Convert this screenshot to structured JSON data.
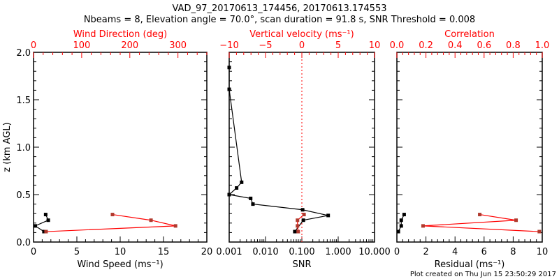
{
  "title_line1": "VAD_97_20170613_174456, 20170613.174553",
  "title_line2": "Nbeams = 8, Elevation angle = 70.0°, scan duration = 91.8 s, SNR Threshold = 0.008",
  "footer": "Plot created on Thu Jun 15 23:50:29 2017",
  "colors": {
    "axis": "#000000",
    "secondary": "#ff0000",
    "secondary_marker": "#b03a2e"
  },
  "chart_data": [
    {
      "type": "line",
      "ylabel": "z (km AGL)",
      "ylim": [
        0,
        2.0
      ],
      "yticks": [
        "0.0",
        "0.5",
        "1.0",
        "1.5",
        "2.0"
      ],
      "xlabel": "Wind Speed (ms⁻¹)",
      "xlim": [
        0,
        20
      ],
      "xticks": [
        "0",
        "5",
        "10",
        "15",
        "20"
      ],
      "top_xlabel": "Wind Direction (deg)",
      "top_xlim": [
        0,
        360
      ],
      "top_xticks": [
        "0",
        "100",
        "200",
        "300"
      ],
      "series": [
        {
          "name": "Wind Speed",
          "axis": "bottom",
          "x": [
            1.4,
            1.7,
            0.2,
            1.2
          ],
          "y": [
            0.29,
            0.23,
            0.17,
            0.11
          ]
        },
        {
          "name": "Wind Direction",
          "axis": "top",
          "x": [
            164,
            244,
            295,
            26
          ],
          "y": [
            0.29,
            0.23,
            0.17,
            0.11
          ]
        }
      ]
    },
    {
      "type": "line",
      "ylim": [
        0,
        2.0
      ],
      "xlabel": "SNR",
      "xscale": "log",
      "xlim": [
        0.001,
        10
      ],
      "xticks": [
        "0.001",
        "0.010",
        "0.100",
        "1.000",
        "10.000"
      ],
      "top_xlabel": "Vertical velocity (ms⁻¹)",
      "top_xlim": [
        -10,
        10
      ],
      "top_xticks": [
        "−10",
        "−5",
        "0",
        "5",
        "10"
      ],
      "reference_line": 0,
      "series": [
        {
          "name": "SNR",
          "axis": "bottom",
          "x": [
            0.001,
            0.001,
            0.0022,
            0.0016,
            0.001,
            0.0039,
            0.0045,
            0.105,
            0.53,
            0.11,
            0.064
          ],
          "y": [
            1.84,
            1.61,
            0.63,
            0.57,
            0.5,
            0.46,
            0.4,
            0.34,
            0.28,
            0.23,
            0.11
          ]
        },
        {
          "name": "Vertical velocity",
          "axis": "top",
          "x": [
            0.3,
            -0.6,
            -0.6,
            -0.5
          ],
          "y": [
            0.29,
            0.23,
            0.17,
            0.11
          ]
        }
      ]
    },
    {
      "type": "line",
      "ylim": [
        0,
        2.0
      ],
      "xlabel": "Residual (ms⁻¹)",
      "xlim": [
        0,
        10
      ],
      "xticks": [
        "0",
        "2",
        "4",
        "6",
        "8",
        "10"
      ],
      "top_xlabel": "Correlation",
      "top_xlim": [
        0,
        1
      ],
      "top_xticks": [
        "0.0",
        "0.2",
        "0.4",
        "0.6",
        "0.8",
        "1.0"
      ],
      "series": [
        {
          "name": "Residual",
          "axis": "bottom",
          "x": [
            0.5,
            0.3,
            0.3,
            0.1
          ],
          "y": [
            0.29,
            0.23,
            0.17,
            0.11
          ]
        },
        {
          "name": "Correlation",
          "axis": "top",
          "x": [
            0.57,
            0.82,
            0.18,
            0.98
          ],
          "y": [
            0.29,
            0.23,
            0.17,
            0.11
          ]
        }
      ]
    }
  ]
}
